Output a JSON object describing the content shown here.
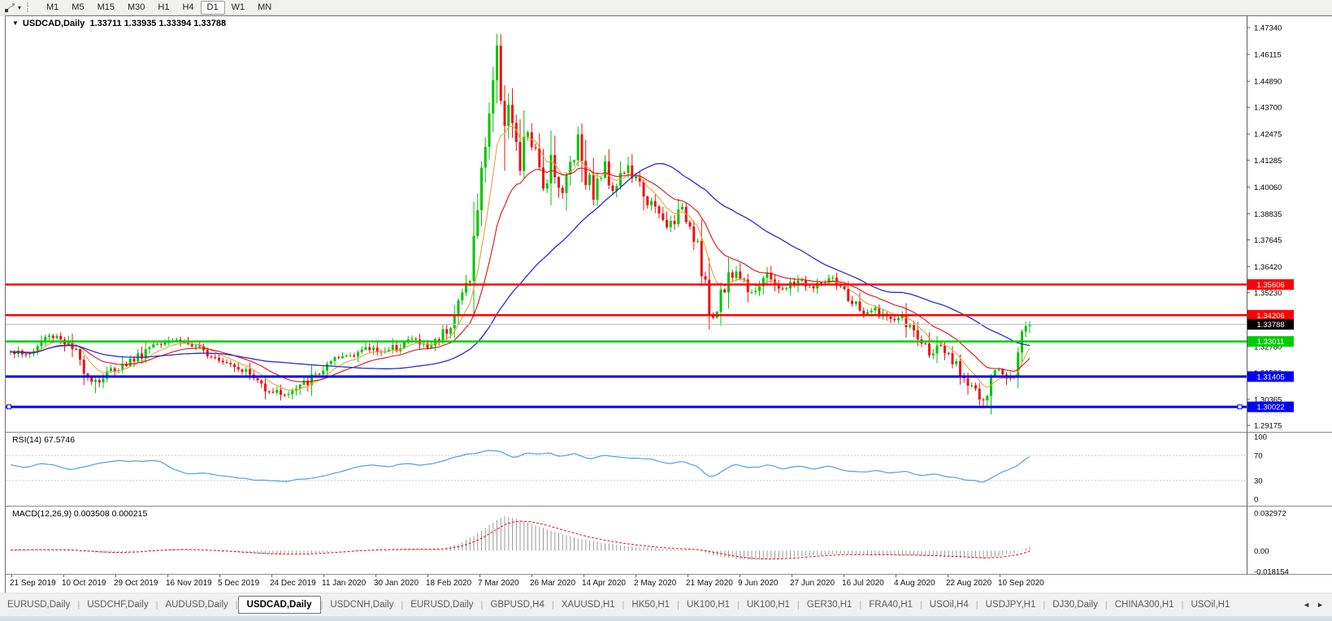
{
  "toolbar": {
    "caret": "▾",
    "timeframes": [
      "M1",
      "M5",
      "M15",
      "M30",
      "H1",
      "H4",
      "D1",
      "W1",
      "MN"
    ],
    "active_timeframe": "D1"
  },
  "chart_header": {
    "symbol_caret": "▼",
    "title": "USDCAD,Daily",
    "ohlc": "1.33711 1.33935 1.33394 1.33788"
  },
  "indicators": {
    "rsi_label": "RSI(14) 67.5746",
    "macd_label": "MACD(12,26,9) 0.003508 0.000215"
  },
  "price_axis": {
    "ticks": [
      "1.47340",
      "1.46115",
      "1.44890",
      "1.43700",
      "1.42475",
      "1.41285",
      "1.40060",
      "1.38835",
      "1.37645",
      "1.36420",
      "1.35230",
      "1.32780",
      "1.31590",
      "1.30365",
      "1.29175"
    ],
    "badges": [
      {
        "label": "1.35606",
        "bg": "#ff0000",
        "fg": "#ffffff"
      },
      {
        "label": "1.34206",
        "bg": "#ff0000",
        "fg": "#ffffff"
      },
      {
        "label": "1.33788",
        "bg": "#000000",
        "fg": "#ffffff"
      },
      {
        "label": "1.33011",
        "bg": "#00cc00",
        "fg": "#ffffff"
      },
      {
        "label": "1.31405",
        "bg": "#0000ff",
        "fg": "#ffffff"
      },
      {
        "label": "1.30022",
        "bg": "#0000ff",
        "fg": "#ffffff"
      }
    ]
  },
  "rsi_axis": {
    "ticks": [
      "100",
      "70",
      "30",
      "0"
    ],
    "levels": [
      70,
      30
    ]
  },
  "macd_axis": {
    "ticks": [
      "0.032972",
      "0.00",
      "-0.018154"
    ]
  },
  "date_axis": [
    "21 Sep 2019",
    "10 Oct 2019",
    "29 Oct 2019",
    "16 Nov 2019",
    "5 Dec 2019",
    "24 Dec 2019",
    "11 Jan 2020",
    "30 Jan 2020",
    "18 Feb 2020",
    "7 Mar 2020",
    "26 Mar 2020",
    "14 Apr 2020",
    "2 May 2020",
    "21 May 2020",
    "9 Jun 2020",
    "27 Jun 2020",
    "16 Jul 2020",
    "4 Aug 2020",
    "22 Aug 2020",
    "10 Sep 2020"
  ],
  "tabs": {
    "items": [
      "EURUSD,Daily",
      "USDCHF,Daily",
      "AUDUSD,Daily",
      "USDCAD,Daily",
      "USDCNH,Daily",
      "EURUSD,Daily",
      "GBPUSD,H4",
      "XAUUSD,H1",
      "HK50,H1",
      "UK100,H1",
      "UK100,H1",
      "GER30,H1",
      "FRA40,H1",
      "USOil,H4",
      "USDJPY,H1",
      "DJ30,Daily",
      "CHINA300,H1",
      "USOil,H1"
    ],
    "active_index": 3,
    "scroll_left_icon": "◄",
    "scroll_right_icon": "►"
  },
  "colors": {
    "up": "#00c400",
    "down": "#ee1111",
    "ma_fast": "#e8a33c",
    "ma_mid": "#dd1111",
    "ma_slow": "#2b2bd0",
    "rsi_line": "#559fd6",
    "rsi_level": "#c9c9c9",
    "macd_hist": "#9a9a9a",
    "macd_signal": "#dd1111",
    "bid_line": "#c4c4c4",
    "axis_line": "#5e5e5e",
    "panel_border": "#8a8a8a"
  },
  "chart_data": {
    "type": "candlestick",
    "symbol": "USDCAD",
    "timeframe": "Daily",
    "bar_count": 265,
    "visible_range": {
      "high": 1.4734,
      "low": 1.29175
    },
    "last_candle": {
      "open": 1.33711,
      "high": 1.33935,
      "low": 1.33394,
      "close": 1.33788
    },
    "current_price": 1.33788,
    "levels": [
      {
        "price": 1.35606,
        "color": "#ff0000",
        "width": 2.5,
        "selected": false
      },
      {
        "price": 1.34206,
        "color": "#ff0000",
        "width": 2.5,
        "selected": false
      },
      {
        "price": 1.33011,
        "color": "#00cc00",
        "width": 2.5,
        "selected": false
      },
      {
        "price": 1.31405,
        "color": "#0000ff",
        "width": 3,
        "selected": false
      },
      {
        "price": 1.30022,
        "color": "#0000ff",
        "width": 3,
        "selected": true
      }
    ],
    "moving_averages": [
      {
        "type": "ema",
        "period": 8,
        "color_key": "ma_fast"
      },
      {
        "type": "ema",
        "period": 20,
        "color_key": "ma_mid"
      },
      {
        "type": "sma",
        "period": 48,
        "color_key": "ma_slow"
      }
    ],
    "price_keypoints": [
      [
        0,
        1.3265
      ],
      [
        3,
        1.3238
      ],
      [
        6,
        1.3255
      ],
      [
        9,
        1.332
      ],
      [
        12,
        1.3328
      ],
      [
        15,
        1.3288
      ],
      [
        18,
        1.3208
      ],
      [
        21,
        1.3132
      ],
      [
        23,
        1.312
      ],
      [
        26,
        1.3168
      ],
      [
        29,
        1.3192
      ],
      [
        33,
        1.3232
      ],
      [
        37,
        1.3292
      ],
      [
        41,
        1.3312
      ],
      [
        45,
        1.3302
      ],
      [
        48,
        1.3268
      ],
      [
        52,
        1.3242
      ],
      [
        56,
        1.3212
      ],
      [
        60,
        1.3178
      ],
      [
        63,
        1.3132
      ],
      [
        66,
        1.3092
      ],
      [
        69,
        1.3068
      ],
      [
        72,
        1.306
      ],
      [
        75,
        1.3092
      ],
      [
        78,
        1.3132
      ],
      [
        82,
        1.3186
      ],
      [
        86,
        1.323
      ],
      [
        90,
        1.3256
      ],
      [
        94,
        1.327
      ],
      [
        98,
        1.3252
      ],
      [
        101,
        1.329
      ],
      [
        104,
        1.3312
      ],
      [
        106,
        1.3292
      ],
      [
        108,
        1.3272
      ],
      [
        110,
        1.3302
      ],
      [
        112,
        1.3342
      ],
      [
        114,
        1.3392
      ],
      [
        116,
        1.347
      ],
      [
        118,
        1.3558
      ],
      [
        119,
        1.3625
      ],
      [
        120,
        1.3755
      ],
      [
        121,
        1.3905
      ],
      [
        122,
        1.4055
      ],
      [
        123,
        1.4225
      ],
      [
        124,
        1.4355
      ],
      [
        125,
        1.4505
      ],
      [
        126,
        1.4625
      ],
      [
        127,
        1.4455
      ],
      [
        128,
        1.431
      ],
      [
        129,
        1.4385
      ],
      [
        130,
        1.427
      ],
      [
        131,
        1.4155
      ],
      [
        132,
        1.4085
      ],
      [
        133,
        1.4185
      ],
      [
        134,
        1.4262
      ],
      [
        135,
        1.4205
      ],
      [
        136,
        1.4125
      ],
      [
        137,
        1.4055
      ],
      [
        138,
        1.4005
      ],
      [
        139,
        1.4082
      ],
      [
        140,
        1.4152
      ],
      [
        141,
        1.4102
      ],
      [
        142,
        1.4032
      ],
      [
        143,
        1.3972
      ],
      [
        144,
        1.4042
      ],
      [
        145,
        1.4122
      ],
      [
        146,
        1.4182
      ],
      [
        147,
        1.4242
      ],
      [
        148,
        1.4152
      ],
      [
        149,
        1.4082
      ],
      [
        150,
        1.4022
      ],
      [
        151,
        1.3962
      ],
      [
        152,
        1.4012
      ],
      [
        153,
        1.4072
      ],
      [
        154,
        1.4112
      ],
      [
        155,
        1.4062
      ],
      [
        156,
        1.4002
      ],
      [
        158,
        1.4062
      ],
      [
        160,
        1.4092
      ],
      [
        162,
        1.4032
      ],
      [
        164,
        1.3982
      ],
      [
        166,
        1.3922
      ],
      [
        168,
        1.3872
      ],
      [
        170,
        1.3822
      ],
      [
        172,
        1.3862
      ],
      [
        174,
        1.3902
      ],
      [
        176,
        1.3842
      ],
      [
        178,
        1.3762
      ],
      [
        180,
        1.3562
      ],
      [
        181,
        1.3425
      ],
      [
        182,
        1.3385
      ],
      [
        183,
        1.3455
      ],
      [
        184,
        1.3532
      ],
      [
        186,
        1.3592
      ],
      [
        188,
        1.3622
      ],
      [
        190,
        1.3572
      ],
      [
        192,
        1.3532
      ],
      [
        194,
        1.3562
      ],
      [
        196,
        1.3602
      ],
      [
        198,
        1.3572
      ],
      [
        200,
        1.3532
      ],
      [
        202,
        1.3556
      ],
      [
        204,
        1.3582
      ],
      [
        206,
        1.3562
      ],
      [
        208,
        1.3542
      ],
      [
        210,
        1.3566
      ],
      [
        212,
        1.3582
      ],
      [
        214,
        1.3556
      ],
      [
        216,
        1.3522
      ],
      [
        218,
        1.3482
      ],
      [
        220,
        1.3442
      ],
      [
        222,
        1.3422
      ],
      [
        224,
        1.3452
      ],
      [
        226,
        1.3422
      ],
      [
        228,
        1.3392
      ],
      [
        230,
        1.3412
      ],
      [
        232,
        1.3382
      ],
      [
        234,
        1.3342
      ],
      [
        236,
        1.3292
      ],
      [
        238,
        1.3252
      ],
      [
        240,
        1.3272
      ],
      [
        242,
        1.3242
      ],
      [
        244,
        1.3202
      ],
      [
        246,
        1.3162
      ],
      [
        248,
        1.3122
      ],
      [
        250,
        1.3082
      ],
      [
        251,
        1.3042
      ],
      [
        252,
        1.3012
      ],
      [
        253,
        1.3062
      ],
      [
        254,
        1.3112
      ],
      [
        255,
        1.3152
      ],
      [
        256,
        1.3178
      ],
      [
        257,
        1.3158
      ],
      [
        258,
        1.3142
      ],
      [
        259,
        1.3165
      ],
      [
        260,
        1.3185
      ],
      [
        261,
        1.3242
      ],
      [
        262,
        1.333
      ],
      [
        263,
        1.33711
      ],
      [
        264,
        1.33788
      ]
    ],
    "extremes": [
      {
        "bar": 22,
        "side": "low",
        "value": 1.3065
      },
      {
        "bar": 71,
        "side": "low",
        "value": 1.3045
      },
      {
        "bar": 126,
        "side": "high",
        "value": 1.4668
      },
      {
        "bar": 128,
        "side": "low",
        "value": 1.408
      },
      {
        "bar": 181,
        "side": "low",
        "value": 1.3355
      },
      {
        "bar": 252,
        "side": "low",
        "value": 1.2995
      }
    ],
    "rsi": {
      "period": 14,
      "value": 67.5746,
      "keypoints": [
        [
          0,
          55
        ],
        [
          4,
          50
        ],
        [
          8,
          58
        ],
        [
          12,
          53
        ],
        [
          16,
          47
        ],
        [
          22,
          56
        ],
        [
          28,
          62
        ],
        [
          34,
          60
        ],
        [
          38,
          62
        ],
        [
          42,
          50
        ],
        [
          46,
          40
        ],
        [
          50,
          42
        ],
        [
          54,
          38
        ],
        [
          58,
          35
        ],
        [
          62,
          32
        ],
        [
          66,
          30
        ],
        [
          70,
          28
        ],
        [
          74,
          31
        ],
        [
          78,
          33
        ],
        [
          82,
          38
        ],
        [
          86,
          45
        ],
        [
          90,
          52
        ],
        [
          94,
          55
        ],
        [
          98,
          52
        ],
        [
          102,
          58
        ],
        [
          106,
          55
        ],
        [
          110,
          57
        ],
        [
          114,
          65
        ],
        [
          118,
          72
        ],
        [
          122,
          76
        ],
        [
          126,
          79
        ],
        [
          128,
          74
        ],
        [
          130,
          66
        ],
        [
          132,
          70
        ],
        [
          134,
          74
        ],
        [
          136,
          71
        ],
        [
          138,
          73
        ],
        [
          140,
          75
        ],
        [
          142,
          67
        ],
        [
          146,
          73
        ],
        [
          150,
          64
        ],
        [
          154,
          70
        ],
        [
          158,
          68
        ],
        [
          162,
          66
        ],
        [
          166,
          64
        ],
        [
          170,
          57
        ],
        [
          174,
          62
        ],
        [
          178,
          52
        ],
        [
          180,
          40
        ],
        [
          182,
          36
        ],
        [
          184,
          45
        ],
        [
          186,
          52
        ],
        [
          188,
          56
        ],
        [
          190,
          52
        ],
        [
          194,
          52
        ],
        [
          196,
          56
        ],
        [
          200,
          48
        ],
        [
          204,
          54
        ],
        [
          208,
          48
        ],
        [
          212,
          53
        ],
        [
          216,
          46
        ],
        [
          220,
          44
        ],
        [
          224,
          46
        ],
        [
          228,
          42
        ],
        [
          232,
          44
        ],
        [
          236,
          38
        ],
        [
          240,
          40
        ],
        [
          244,
          35
        ],
        [
          248,
          31
        ],
        [
          250,
          29
        ],
        [
          252,
          27
        ],
        [
          254,
          35
        ],
        [
          256,
          42
        ],
        [
          258,
          46
        ],
        [
          260,
          50
        ],
        [
          262,
          60
        ],
        [
          264,
          67.6
        ]
      ]
    },
    "macd": {
      "fast": 12,
      "slow": 26,
      "signal": 9,
      "value": 0.003508,
      "signal_value": 0.000215,
      "keypoints": [
        [
          0,
          0.0006
        ],
        [
          6,
          0.0012
        ],
        [
          12,
          0.001
        ],
        [
          18,
          -0.0006
        ],
        [
          24,
          -0.002
        ],
        [
          30,
          -0.0012
        ],
        [
          36,
          0.0006
        ],
        [
          42,
          0.0016
        ],
        [
          48,
          0.0008
        ],
        [
          54,
          -0.0006
        ],
        [
          60,
          -0.002
        ],
        [
          66,
          -0.003
        ],
        [
          72,
          -0.0035
        ],
        [
          78,
          -0.0024
        ],
        [
          84,
          -0.0008
        ],
        [
          90,
          0.0008
        ],
        [
          96,
          0.0014
        ],
        [
          102,
          0.0016
        ],
        [
          108,
          0.0012
        ],
        [
          112,
          0.0022
        ],
        [
          116,
          0.006
        ],
        [
          120,
          0.013
        ],
        [
          123,
          0.02
        ],
        [
          126,
          0.027
        ],
        [
          128,
          0.03
        ],
        [
          130,
          0.0288
        ],
        [
          133,
          0.0258
        ],
        [
          136,
          0.022
        ],
        [
          139,
          0.0185
        ],
        [
          142,
          0.0152
        ],
        [
          145,
          0.0125
        ],
        [
          148,
          0.0102
        ],
        [
          151,
          0.0082
        ],
        [
          154,
          0.0065
        ],
        [
          158,
          0.0048
        ],
        [
          162,
          0.0034
        ],
        [
          166,
          0.0024
        ],
        [
          170,
          0.0015
        ],
        [
          174,
          0.001
        ],
        [
          178,
          0
        ],
        [
          181,
          -0.003
        ],
        [
          184,
          -0.0052
        ],
        [
          187,
          -0.0066
        ],
        [
          190,
          -0.0076
        ],
        [
          193,
          -0.008
        ],
        [
          196,
          -0.0076
        ],
        [
          199,
          -0.0068
        ],
        [
          202,
          -0.0058
        ],
        [
          205,
          -0.0048
        ],
        [
          208,
          -0.004
        ],
        [
          211,
          -0.0034
        ],
        [
          214,
          -0.003
        ],
        [
          217,
          -0.003
        ],
        [
          220,
          -0.0033
        ],
        [
          223,
          -0.0035
        ],
        [
          226,
          -0.0035
        ],
        [
          229,
          -0.0037
        ],
        [
          232,
          -0.004
        ],
        [
          235,
          -0.0043
        ],
        [
          238,
          -0.0046
        ],
        [
          241,
          -0.005
        ],
        [
          244,
          -0.0055
        ],
        [
          247,
          -0.006
        ],
        [
          250,
          -0.0066
        ],
        [
          252,
          -0.0068
        ],
        [
          254,
          -0.006
        ],
        [
          256,
          -0.0047
        ],
        [
          258,
          -0.0033
        ],
        [
          260,
          -0.0018
        ],
        [
          262,
          0.0006
        ],
        [
          264,
          0.0035
        ]
      ]
    }
  }
}
